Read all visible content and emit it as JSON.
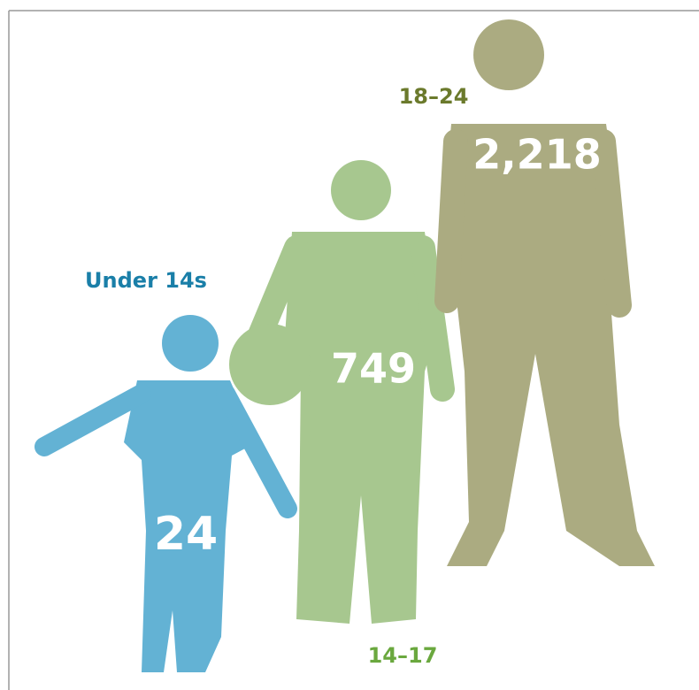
{
  "chart_data": {
    "type": "pictograph",
    "categories": [
      "Under 14s",
      "14–17",
      "18–24"
    ],
    "values": [
      24,
      749,
      2218
    ],
    "value_labels": [
      "24",
      "749",
      "2,218"
    ],
    "colors": [
      "#63b2d4",
      "#a7c78f",
      "#abab81"
    ],
    "label_colors": [
      "#1a7fa8",
      "#6aa83e",
      "#6b7a2c"
    ]
  }
}
